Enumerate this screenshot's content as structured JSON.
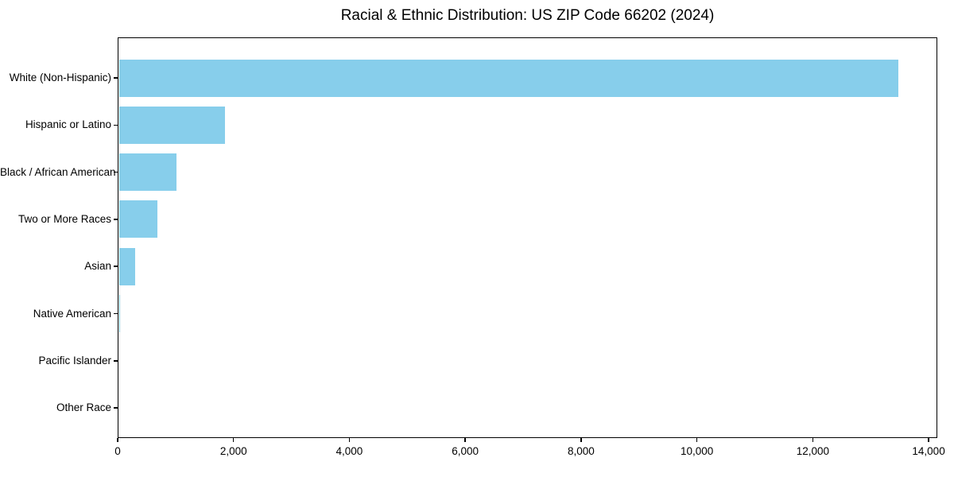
{
  "chart_data": {
    "type": "bar",
    "orientation": "horizontal",
    "title": "Racial & Ethnic Distribution: US ZIP Code 66202 (2024)",
    "categories": [
      "White (Non-Hispanic)",
      "Hispanic or Latino",
      "Black / African American",
      "Two or More Races",
      "Asian",
      "Native American",
      "Pacific Islander",
      "Other Race"
    ],
    "values": [
      13480,
      1850,
      1020,
      680,
      300,
      40,
      0,
      0
    ],
    "xlabel": "",
    "ylabel": "",
    "xlim": [
      0,
      14150
    ],
    "xticks": [
      0,
      2000,
      4000,
      6000,
      8000,
      10000,
      12000,
      14000
    ],
    "xtick_labels": [
      "0",
      "2,000",
      "4,000",
      "6,000",
      "8,000",
      "10,000",
      "12,000",
      "14,000"
    ],
    "bar_color": "#87CEEB",
    "spine_color": "#000000",
    "text_color": "#000000",
    "background_color": "#ffffff",
    "grid": false,
    "legend": null
  }
}
